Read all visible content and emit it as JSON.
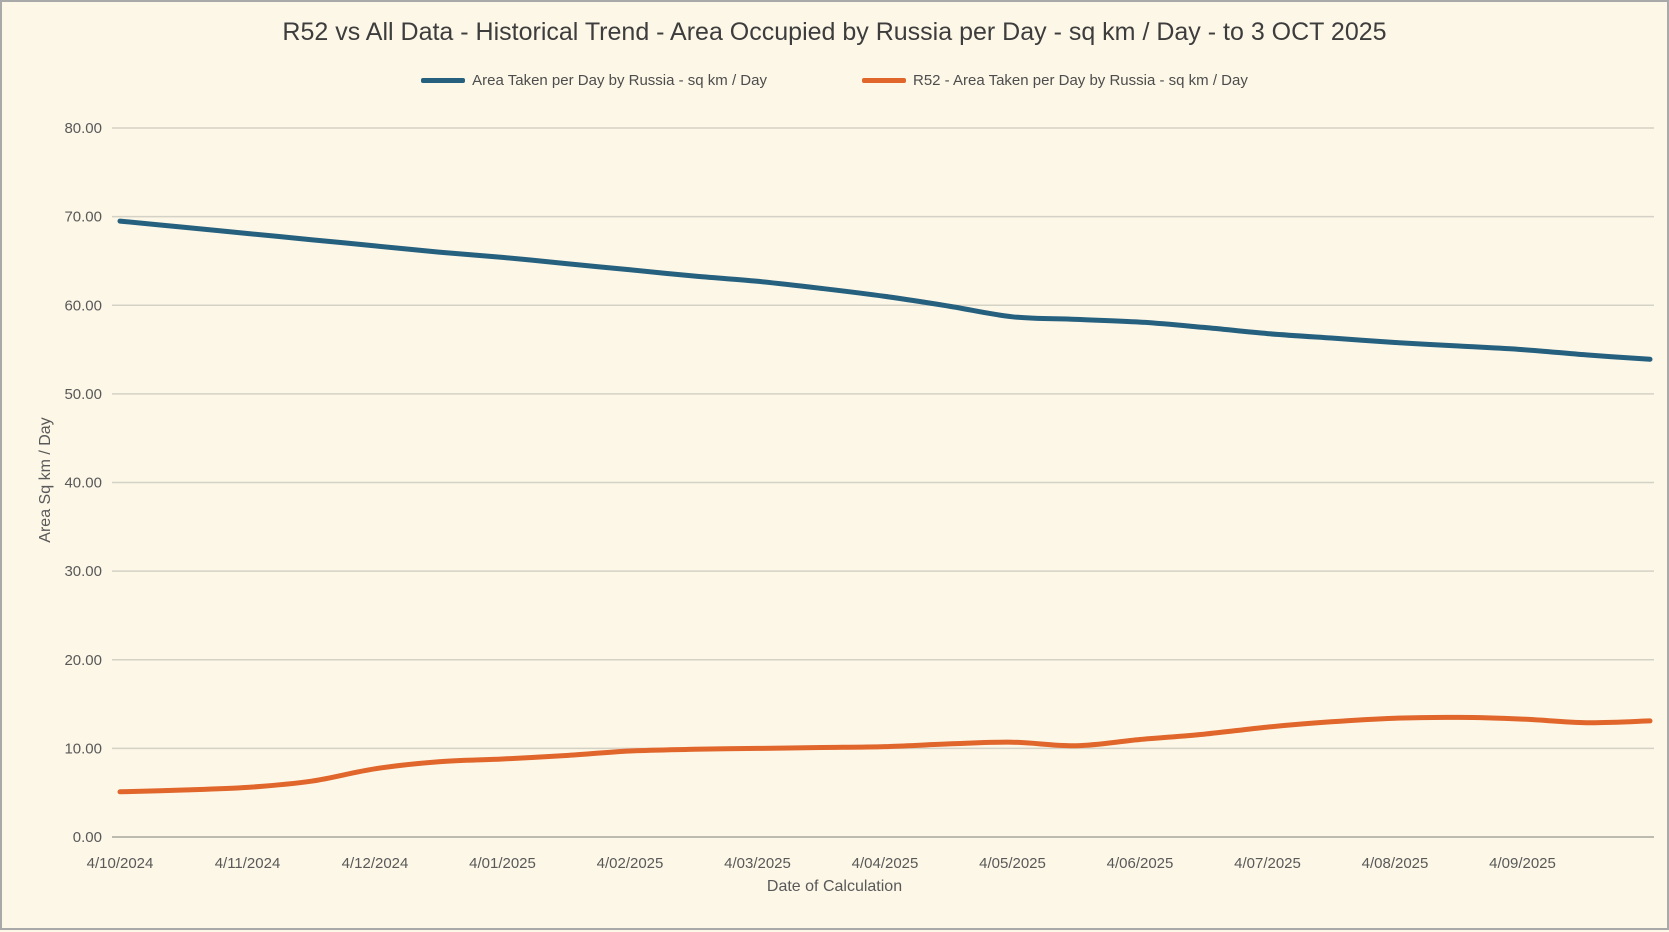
{
  "window": {
    "background_color": "#fdf7e7",
    "border_color": "#a9a9a9"
  },
  "chart_data": {
    "type": "line",
    "title": "R52 vs All Data - Historical Trend - Area Occupied by Russia per Day - sq km / Day - to 3 OCT 2025",
    "xlabel": "Date of Calculation",
    "ylabel": "Area Sq km / Day",
    "ylim": [
      0,
      80
    ],
    "y_tick_step": 10,
    "y_tick_labels": [
      "0.00",
      "10.00",
      "20.00",
      "30.00",
      "40.00",
      "50.00",
      "60.00",
      "70.00",
      "80.00"
    ],
    "x_tick_labels": [
      "4/10/2024",
      "4/11/2024",
      "4/12/2024",
      "4/01/2025",
      "4/02/2025",
      "4/03/2025",
      "4/04/2025",
      "4/05/2025",
      "4/06/2025",
      "4/07/2025",
      "4/08/2025",
      "4/09/2025"
    ],
    "x_ticks_every_n_points": 2,
    "grid": true,
    "legend_position": "top-center",
    "gridline_color": "#d4d1c6",
    "axis_line_color": "#bdbab0",
    "series": [
      {
        "name": "Area Taken per Day by Russia - sq km / Day",
        "color": "#26607f",
        "values": [
          69.5,
          68.8,
          68.1,
          67.4,
          66.7,
          66.0,
          65.4,
          64.7,
          64.0,
          63.3,
          62.7,
          61.9,
          61.0,
          59.9,
          58.7,
          58.4,
          58.1,
          57.5,
          56.8,
          56.3,
          55.8,
          55.4,
          55.0,
          54.4,
          53.9
        ]
      },
      {
        "name": "R52 - Area Taken per Day by Russia - sq km / Day",
        "color": "#e0662c",
        "values": [
          5.1,
          5.3,
          5.6,
          6.3,
          7.7,
          8.5,
          8.8,
          9.2,
          9.7,
          9.9,
          10.0,
          10.1,
          10.2,
          10.5,
          10.7,
          10.3,
          11.0,
          11.6,
          12.4,
          13.0,
          13.4,
          13.5,
          13.3,
          12.9,
          13.1
        ]
      }
    ]
  }
}
